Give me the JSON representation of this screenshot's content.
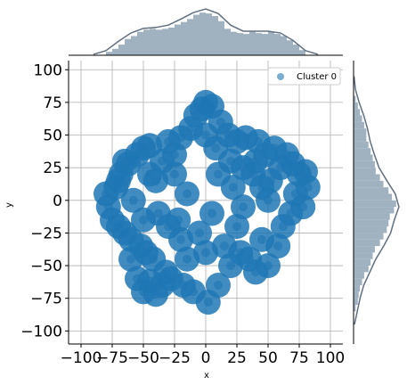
{
  "chart_data": {
    "type": "scatter",
    "xlabel": "x",
    "ylabel": "y",
    "xlim": [
      -110,
      110
    ],
    "ylim": [
      -110,
      107
    ],
    "grid": true,
    "xticks": [
      -100,
      -75,
      -50,
      -25,
      0,
      25,
      50,
      75,
      100
    ],
    "yticks": [
      -100,
      -75,
      -50,
      -25,
      0,
      25,
      50,
      75,
      100
    ],
    "xtick_labels": [
      "−100",
      "−75",
      "−50",
      "−25",
      "0",
      "25",
      "50",
      "75",
      "100"
    ],
    "ytick_labels": [
      "−100",
      "−75",
      "−50",
      "−25",
      "0",
      "25",
      "50",
      "75",
      "100"
    ],
    "legend": {
      "position": "upper right",
      "entries": [
        "Cluster 0"
      ]
    },
    "series": [
      {
        "name": "Cluster 0",
        "color": "#1f77b4",
        "marker_opacity": 0.6,
        "points": [
          [
            -80,
            5
          ],
          [
            -78,
            -5
          ],
          [
            -75,
            -15
          ],
          [
            -72,
            10
          ],
          [
            -70,
            -20
          ],
          [
            -68,
            20
          ],
          [
            -65,
            -25
          ],
          [
            -62,
            28
          ],
          [
            -60,
            -30
          ],
          [
            -58,
            0
          ],
          [
            -55,
            35
          ],
          [
            -52,
            -35
          ],
          [
            -50,
            40
          ],
          [
            -48,
            -40
          ],
          [
            -45,
            42
          ],
          [
            -42,
            -45
          ],
          [
            -40,
            15
          ],
          [
            -38,
            -10
          ],
          [
            -35,
            30
          ],
          [
            -32,
            -55
          ],
          [
            -30,
            45
          ],
          [
            -28,
            -60
          ],
          [
            -25,
            20
          ],
          [
            -22,
            -15
          ],
          [
            -20,
            48
          ],
          [
            -18,
            -65
          ],
          [
            -15,
            5
          ],
          [
            -12,
            55
          ],
          [
            -10,
            -70
          ],
          [
            -8,
            65
          ],
          [
            -5,
            -25
          ],
          [
            -3,
            70
          ],
          [
            0,
            75
          ],
          [
            2,
            -78
          ],
          [
            5,
            72
          ],
          [
            8,
            40
          ],
          [
            10,
            -65
          ],
          [
            12,
            60
          ],
          [
            15,
            -35
          ],
          [
            18,
            50
          ],
          [
            20,
            -50
          ],
          [
            22,
            10
          ],
          [
            25,
            45
          ],
          [
            28,
            -40
          ],
          [
            30,
            -5
          ],
          [
            32,
            48
          ],
          [
            35,
            -45
          ],
          [
            38,
            20
          ],
          [
            40,
            -55
          ],
          [
            42,
            45
          ],
          [
            45,
            -30
          ],
          [
            48,
            35
          ],
          [
            50,
            -50
          ],
          [
            52,
            15
          ],
          [
            55,
            40
          ],
          [
            58,
            -35
          ],
          [
            60,
            25
          ],
          [
            62,
            -20
          ],
          [
            65,
            35
          ],
          [
            68,
            -10
          ],
          [
            70,
            28
          ],
          [
            72,
            5
          ],
          [
            75,
            20
          ],
          [
            78,
            -5
          ],
          [
            80,
            22
          ],
          [
            82,
            10
          ],
          [
            -60,
            -45
          ],
          [
            -55,
            -60
          ],
          [
            -50,
            -70
          ],
          [
            -45,
            -62
          ],
          [
            -40,
            -72
          ],
          [
            -35,
            -65
          ],
          [
            -70,
            15
          ],
          [
            -65,
            30
          ],
          [
            -50,
            -15
          ],
          [
            -20,
            -30
          ],
          [
            0,
            -40
          ],
          [
            10,
            20
          ],
          [
            30,
            25
          ],
          [
            50,
            0
          ],
          [
            -30,
            -20
          ],
          [
            -15,
            -45
          ],
          [
            5,
            -10
          ],
          [
            25,
            -20
          ],
          [
            45,
            10
          ],
          [
            -45,
            20
          ],
          [
            -25,
            35
          ],
          [
            0,
            50
          ],
          [
            20,
            30
          ],
          [
            40,
            30
          ]
        ]
      }
    ],
    "marginal_top": {
      "type": "histogram_kde",
      "color": "#8fa3b5",
      "bin_edges": [
        -80,
        -75,
        -70,
        -65,
        -60,
        -55,
        -50,
        -45,
        -40,
        -35,
        -30,
        -25,
        -20,
        -15,
        -10,
        -5,
        0,
        5,
        10,
        15,
        20,
        25,
        30,
        35,
        40,
        45,
        50,
        55,
        60,
        65,
        70,
        75,
        80
      ],
      "heights": [
        0.08,
        0.15,
        0.25,
        0.38,
        0.45,
        0.55,
        0.6,
        0.62,
        0.6,
        0.62,
        0.65,
        0.72,
        0.78,
        0.85,
        0.95,
        1.0,
        0.98,
        0.92,
        0.8,
        0.62,
        0.55,
        0.52,
        0.5,
        0.55,
        0.52,
        0.5,
        0.55,
        0.5,
        0.45,
        0.35,
        0.25,
        0.12
      ],
      "kde_x": [
        -90,
        -80,
        -70,
        -60,
        -50,
        -40,
        -30,
        -20,
        -10,
        0,
        10,
        20,
        30,
        40,
        50,
        60,
        70,
        80,
        90
      ],
      "kde_y": [
        0.02,
        0.1,
        0.3,
        0.48,
        0.58,
        0.6,
        0.65,
        0.78,
        0.92,
        1.0,
        0.9,
        0.65,
        0.52,
        0.52,
        0.52,
        0.48,
        0.32,
        0.1,
        0.02
      ]
    },
    "marginal_right": {
      "type": "histogram_kde",
      "color": "#8fa3b5",
      "bin_edges": [
        -85,
        -80,
        -75,
        -70,
        -65,
        -60,
        -55,
        -50,
        -45,
        -40,
        -35,
        -30,
        -25,
        -20,
        -15,
        -10,
        -5,
        0,
        5,
        10,
        15,
        20,
        25,
        30,
        35,
        40,
        45,
        50,
        55,
        60,
        65,
        70,
        75,
        80
      ],
      "heights": [
        0.05,
        0.1,
        0.12,
        0.15,
        0.2,
        0.25,
        0.35,
        0.4,
        0.45,
        0.5,
        0.62,
        0.7,
        0.78,
        0.82,
        0.85,
        0.95,
        1.0,
        0.9,
        0.82,
        0.7,
        0.62,
        0.52,
        0.5,
        0.45,
        0.4,
        0.35,
        0.3,
        0.3,
        0.25,
        0.2,
        0.15,
        0.1,
        0.05
      ],
      "kde_y": [
        -95,
        -85,
        -75,
        -65,
        -55,
        -45,
        -35,
        -25,
        -15,
        -5,
        5,
        15,
        25,
        35,
        45,
        55,
        65,
        75,
        85,
        95
      ],
      "kde_x": [
        0.02,
        0.08,
        0.14,
        0.22,
        0.35,
        0.48,
        0.65,
        0.8,
        0.88,
        0.98,
        0.9,
        0.72,
        0.55,
        0.45,
        0.36,
        0.3,
        0.22,
        0.12,
        0.04,
        0.01
      ]
    }
  }
}
